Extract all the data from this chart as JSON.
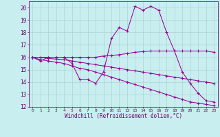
{
  "xlabel": "Windchill (Refroidissement éolien,°C)",
  "background_color": "#c8eef0",
  "line_color": "#990099",
  "grid_color": "#aacccc",
  "xlim": [
    -0.5,
    23.5
  ],
  "ylim": [
    12,
    20.5
  ],
  "xticks": [
    0,
    1,
    2,
    3,
    4,
    5,
    6,
    7,
    8,
    9,
    10,
    11,
    12,
    13,
    14,
    15,
    16,
    17,
    18,
    19,
    20,
    21,
    22,
    23
  ],
  "yticks": [
    12,
    13,
    14,
    15,
    16,
    17,
    18,
    19,
    20
  ],
  "lines": [
    {
      "x": [
        0,
        1,
        2,
        3,
        4,
        5,
        6,
        7,
        8,
        9,
        10,
        11,
        12,
        13,
        14,
        15,
        16,
        17,
        18,
        19,
        20,
        21,
        22,
        23
      ],
      "y": [
        16.0,
        15.7,
        16.0,
        16.0,
        16.0,
        15.5,
        14.2,
        14.2,
        13.9,
        14.8,
        17.5,
        18.4,
        18.1,
        20.1,
        19.8,
        20.1,
        19.8,
        18.0,
        16.5,
        14.8,
        13.9,
        13.1,
        12.5,
        12.4
      ]
    },
    {
      "x": [
        0,
        1,
        2,
        3,
        4,
        5,
        6,
        7,
        8,
        9,
        10,
        11,
        12,
        13,
        14,
        15,
        16,
        17,
        18,
        19,
        20,
        21,
        22,
        23
      ],
      "y": [
        16.0,
        16.0,
        16.0,
        16.0,
        16.0,
        16.0,
        16.0,
        16.0,
        16.0,
        16.1,
        16.15,
        16.2,
        16.3,
        16.4,
        16.45,
        16.5,
        16.5,
        16.5,
        16.5,
        16.5,
        16.5,
        16.5,
        16.5,
        16.4
      ]
    },
    {
      "x": [
        0,
        1,
        2,
        3,
        4,
        5,
        6,
        7,
        8,
        9,
        10,
        11,
        12,
        13,
        14,
        15,
        16,
        17,
        18,
        19,
        20,
        21,
        22,
        23
      ],
      "y": [
        16.0,
        16.0,
        15.9,
        15.85,
        15.8,
        15.7,
        15.6,
        15.5,
        15.4,
        15.3,
        15.2,
        15.1,
        15.0,
        14.9,
        14.8,
        14.7,
        14.6,
        14.5,
        14.4,
        14.3,
        14.2,
        14.1,
        14.0,
        13.9
      ]
    },
    {
      "x": [
        0,
        1,
        2,
        3,
        4,
        5,
        6,
        7,
        8,
        9,
        10,
        11,
        12,
        13,
        14,
        15,
        16,
        17,
        18,
        19,
        20,
        21,
        22,
        23
      ],
      "y": [
        16.0,
        15.8,
        15.7,
        15.6,
        15.5,
        15.3,
        15.1,
        15.0,
        14.8,
        14.6,
        14.4,
        14.2,
        14.0,
        13.8,
        13.6,
        13.4,
        13.2,
        13.0,
        12.8,
        12.6,
        12.4,
        12.3,
        12.2,
        12.1
      ]
    }
  ]
}
